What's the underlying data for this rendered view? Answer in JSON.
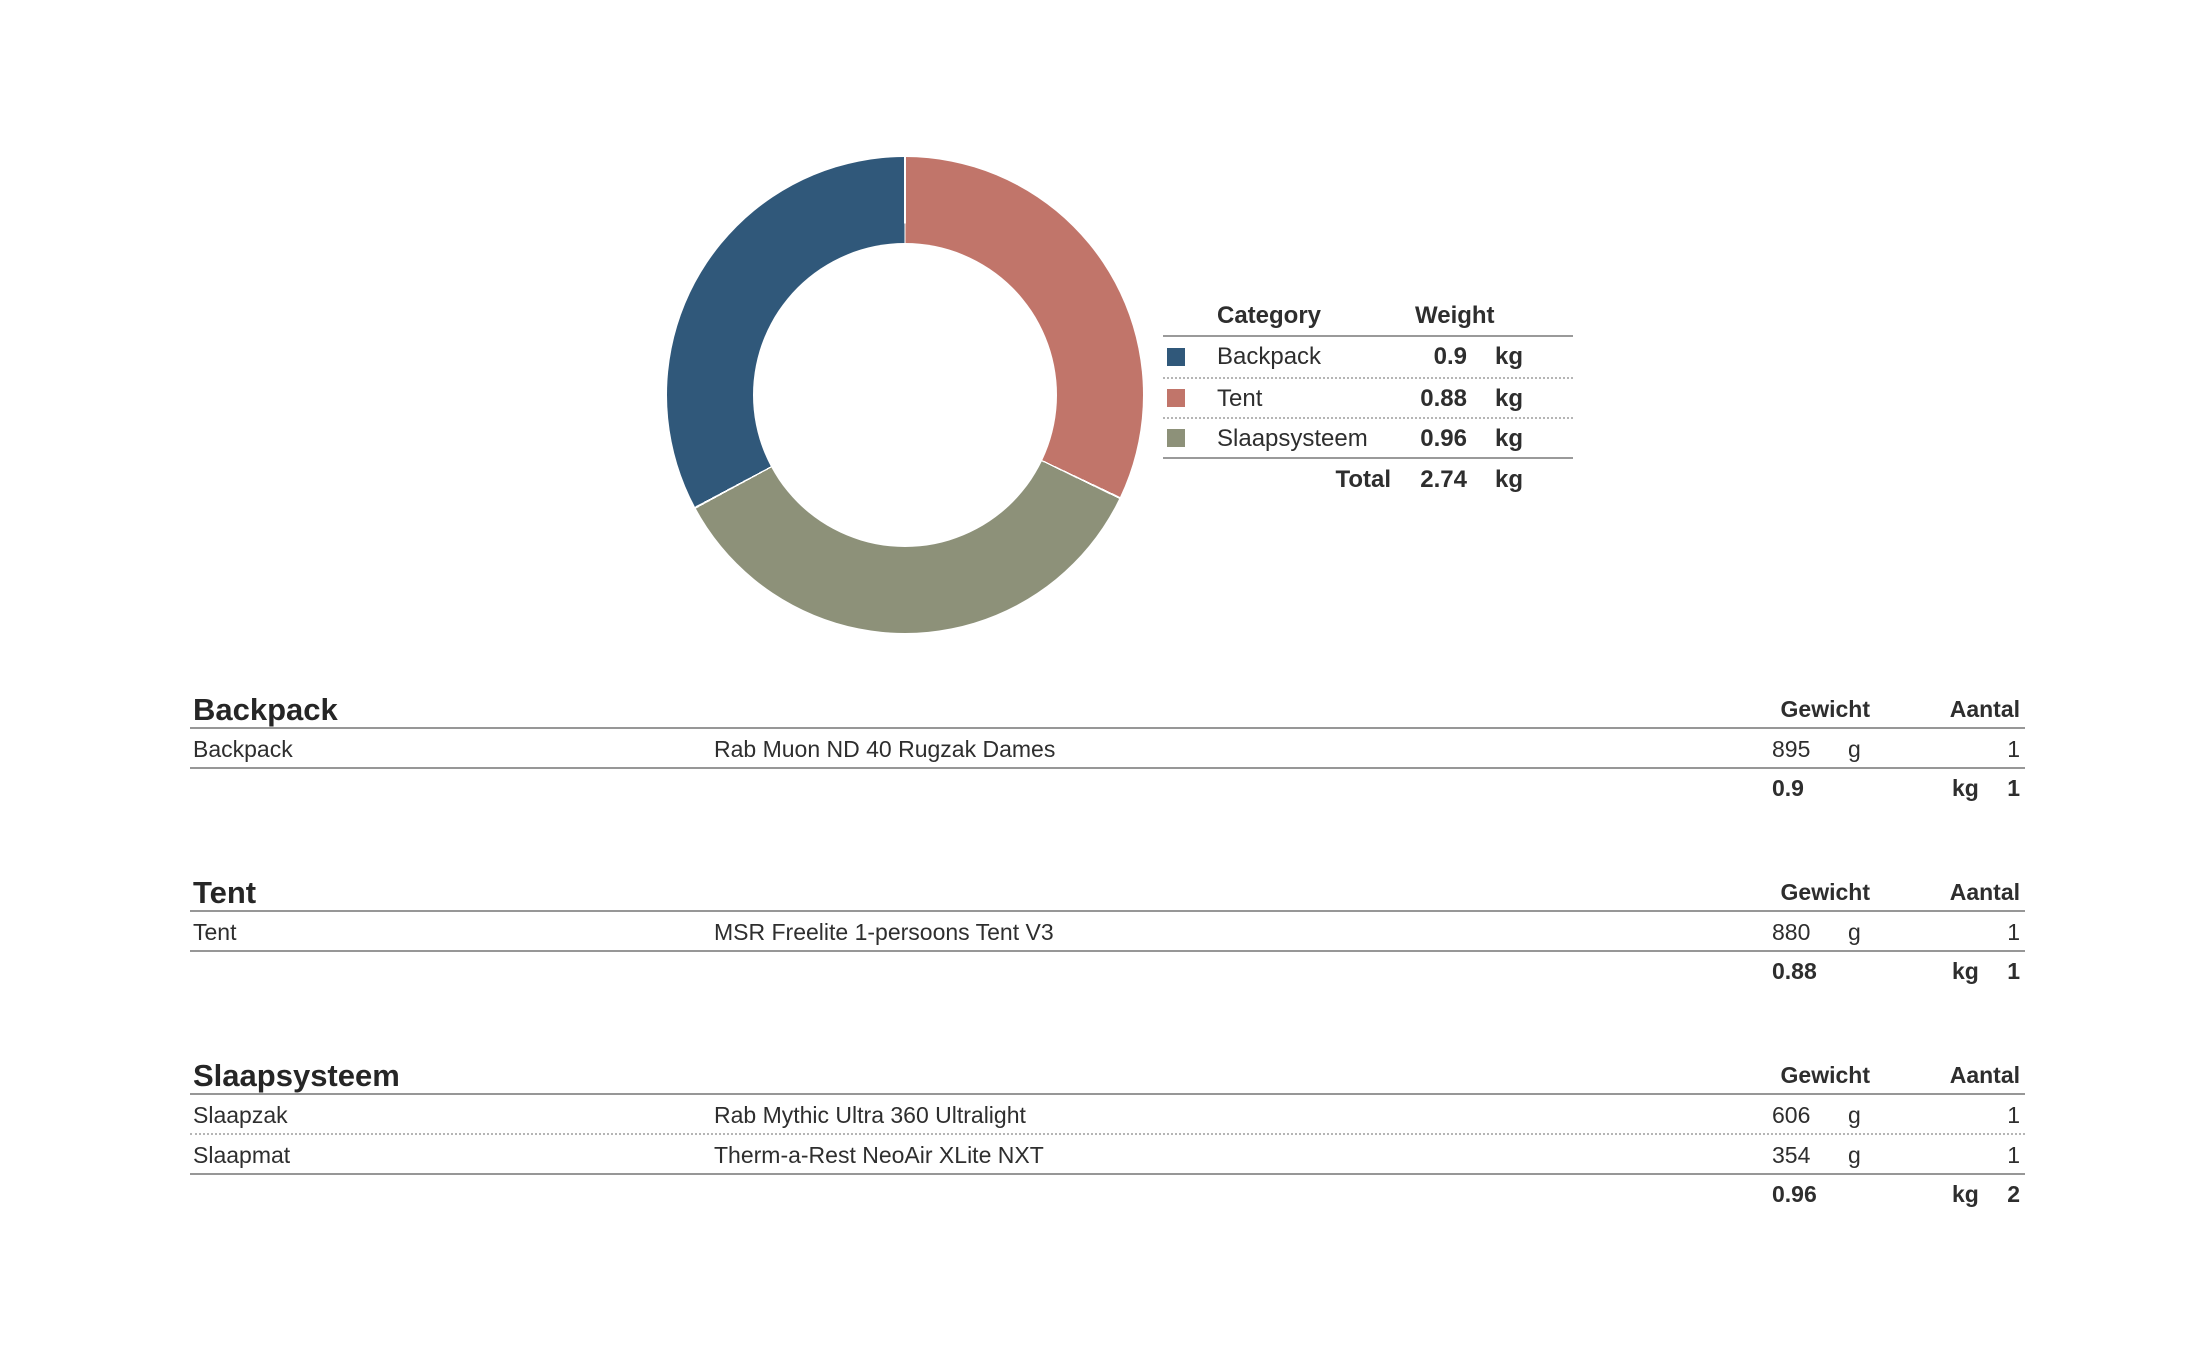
{
  "chart_data": {
    "type": "pie",
    "donut": true,
    "title": "",
    "categories": [
      "Backpack",
      "Tent",
      "Slaapsysteem"
    ],
    "values": [
      0.9,
      0.88,
      0.96
    ],
    "unit": "kg",
    "total": 2.74,
    "colors": [
      "#30587a",
      "#c1756a",
      "#8d9179"
    ],
    "start_angle_deg": -118.25,
    "direction": "clockwise",
    "hole_ratio": 0.64,
    "legend_position": "right"
  },
  "legend": {
    "headers": {
      "category": "Category",
      "weight": "Weight"
    },
    "rows": [
      {
        "label": "Backpack",
        "value": "0.9",
        "unit": "kg"
      },
      {
        "label": "Tent",
        "value": "0.88",
        "unit": "kg"
      },
      {
        "label": "Slaapsysteem",
        "value": "0.96",
        "unit": "kg"
      }
    ],
    "total": {
      "label": "Total",
      "value": "2.74",
      "unit": "kg"
    }
  },
  "sections": [
    {
      "title": "Backpack",
      "weight_header": "Gewicht",
      "qty_header": "Aantal",
      "rows": [
        {
          "item": "Backpack",
          "description": "Rab Muon ND 40 Rugzak Dames",
          "weight": "895",
          "unit": "g",
          "qty": "1"
        }
      ],
      "total": {
        "weight": "0.9",
        "unit": "kg",
        "qty": "1"
      }
    },
    {
      "title": "Tent",
      "weight_header": "Gewicht",
      "qty_header": "Aantal",
      "rows": [
        {
          "item": "Tent",
          "description": "MSR Freelite 1-persoons Tent V3",
          "weight": "880",
          "unit": "g",
          "qty": "1"
        }
      ],
      "total": {
        "weight": "0.88",
        "unit": "kg",
        "qty": "1"
      }
    },
    {
      "title": "Slaapsysteem",
      "weight_header": "Gewicht",
      "qty_header": "Aantal",
      "rows": [
        {
          "item": "Slaapzak",
          "description": "Rab Mythic Ultra 360 Ultralight",
          "weight": "606",
          "unit": "g",
          "qty": "1"
        },
        {
          "item": "Slaapmat",
          "description": "Therm-a-Rest NeoAir XLite NXT",
          "weight": "354",
          "unit": "g",
          "qty": "1"
        }
      ],
      "total": {
        "weight": "0.96",
        "unit": "kg",
        "qty": "2"
      }
    }
  ]
}
